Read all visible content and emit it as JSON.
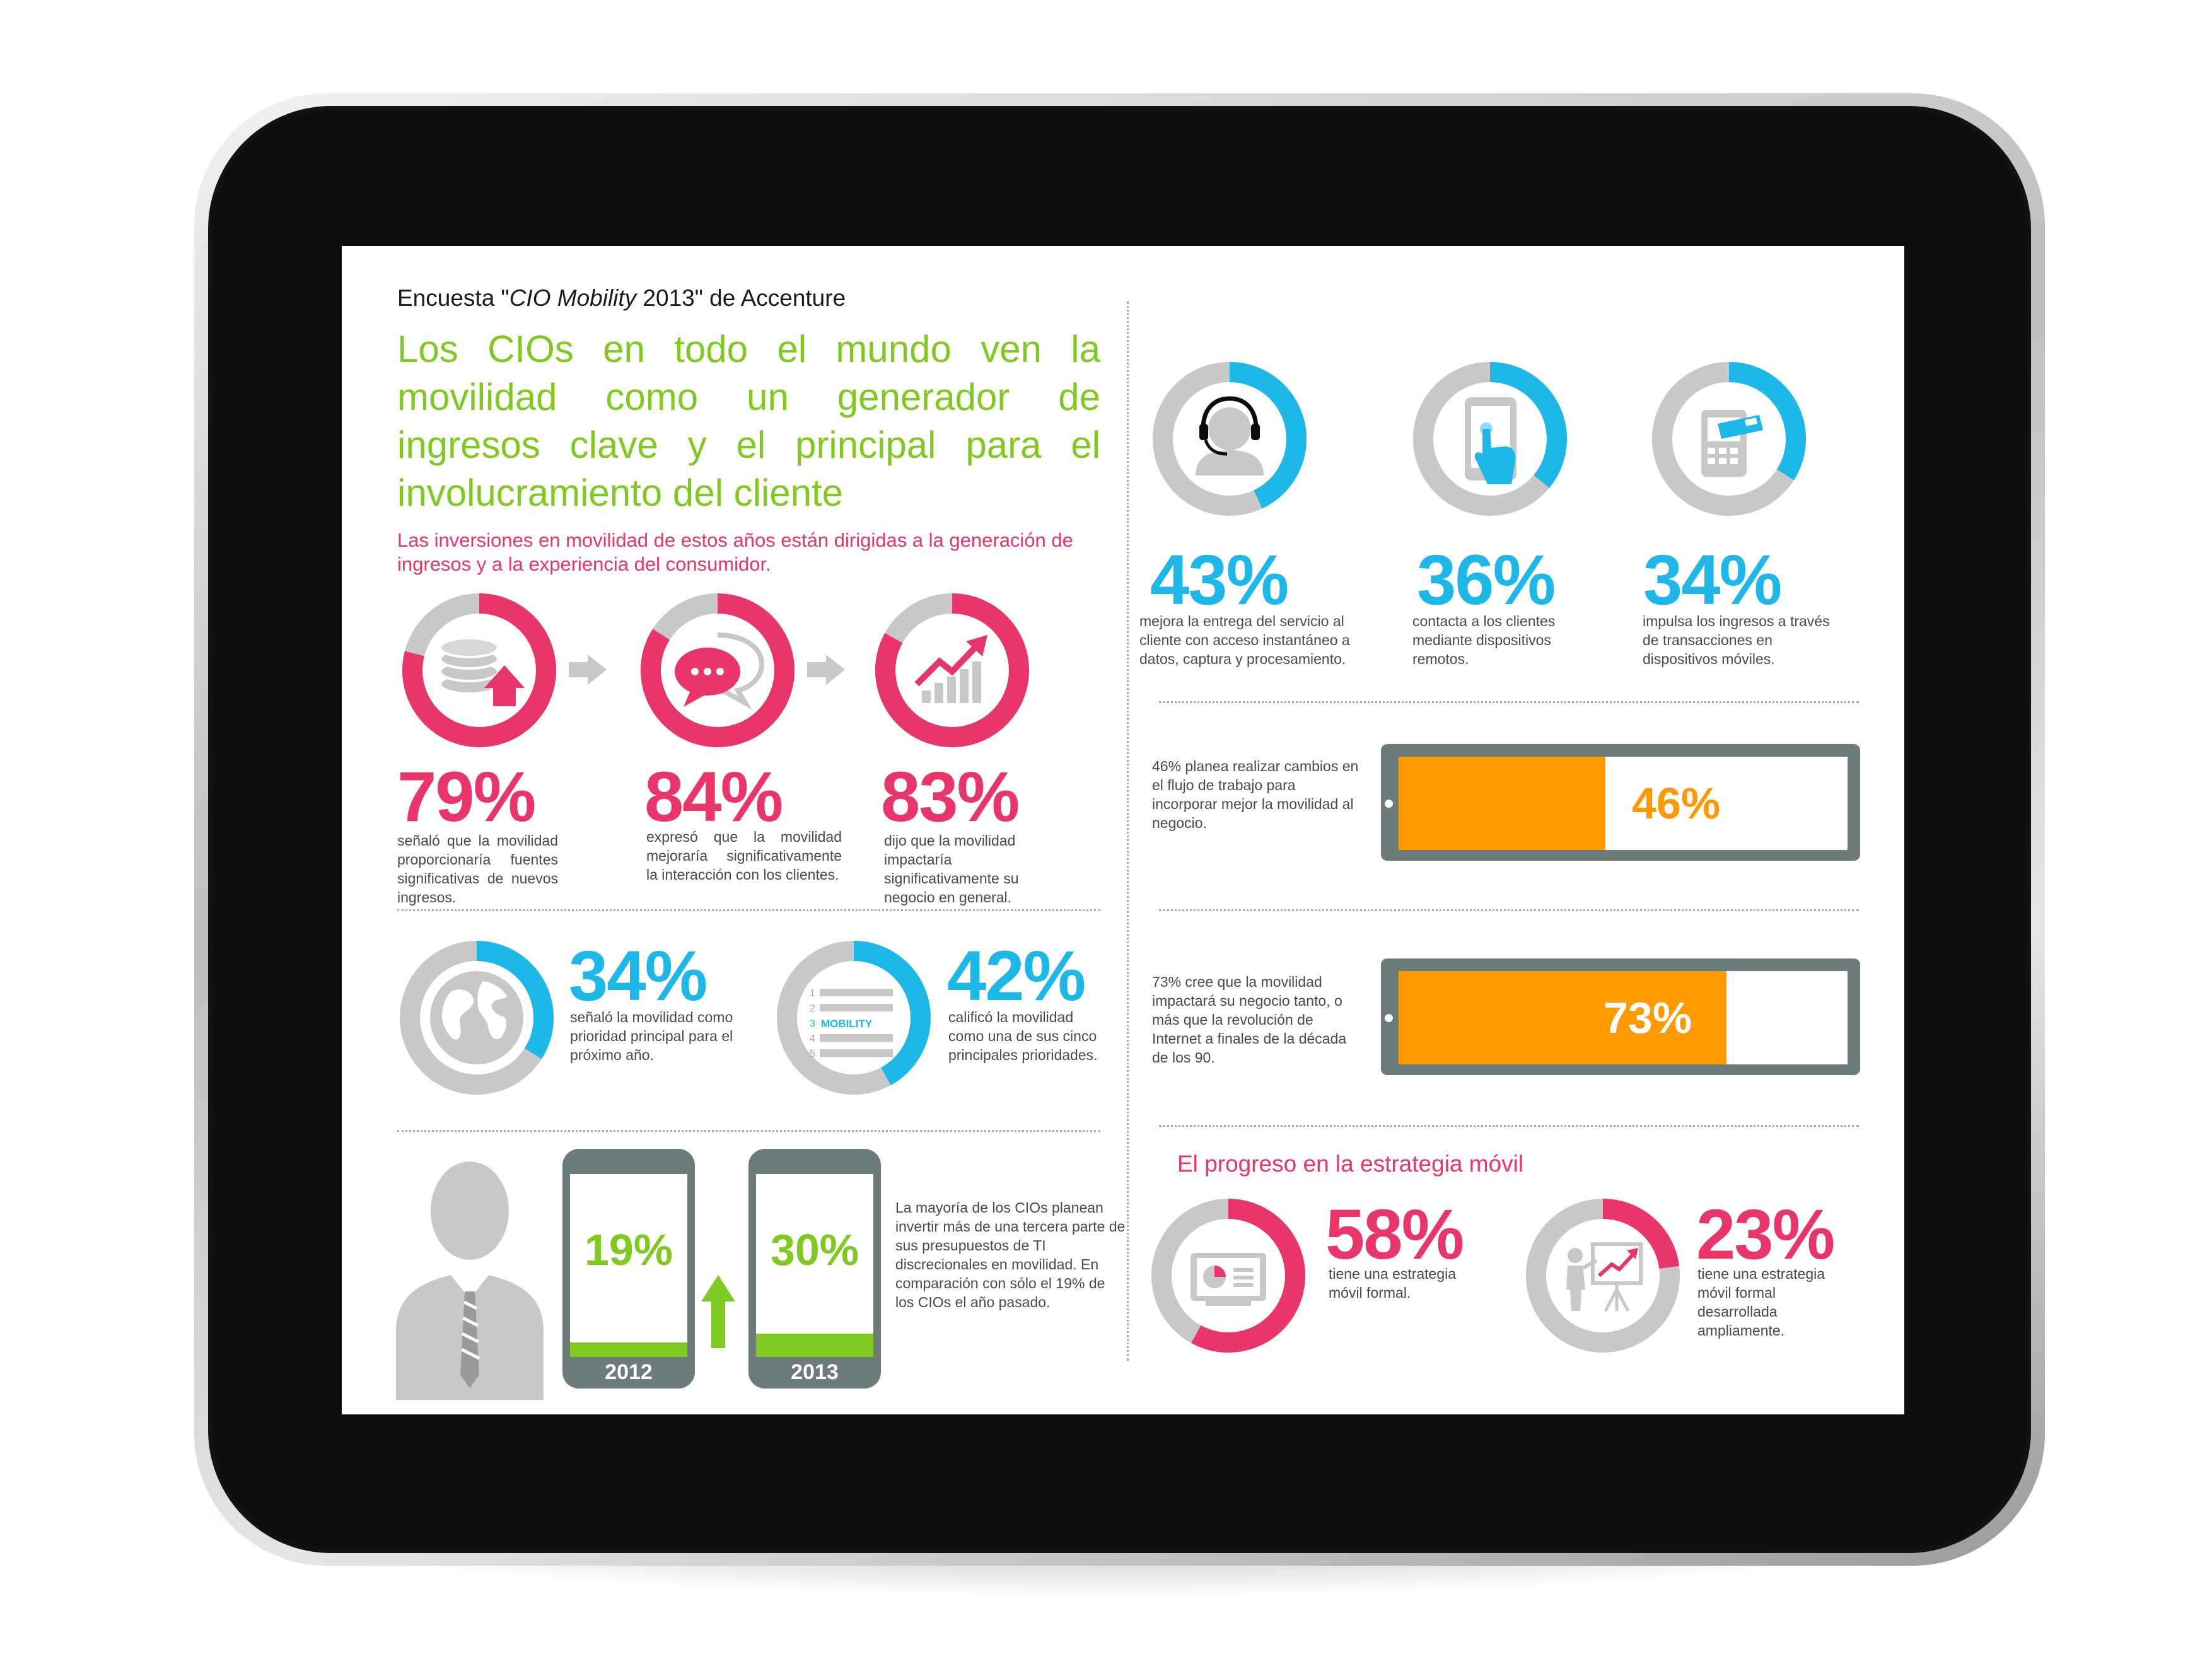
{
  "colors": {
    "pink": "#e8366a",
    "blue": "#1eb8e8",
    "green": "#80c921",
    "orange": "#ff9a00",
    "ring_gray": "#c8c8c8",
    "slate": "#6e7b7b"
  },
  "kicker": {
    "prefix": "Encuesta \"",
    "italic": "CIO Mobility",
    "suffix": " 2013\" de Accenture"
  },
  "headline": "Los CIOs en todo el mundo ven la movilidad como un generador de ingresos clave y el principal para el involucramiento del cliente",
  "subhead": "Las inversiones en movilidad de estos años están dirigidas a la generación de ingresos y a la experiencia del consumidor.",
  "revenue_stats": [
    {
      "icon": "coins-up-icon",
      "value": 79,
      "pct": "79%",
      "text": "señaló que la movilidad proporcionaría fuentes significativas de nuevos ingresos."
    },
    {
      "icon": "chat-bubbles-icon",
      "value": 84,
      "pct": "84%",
      "text": "expresó que la movilidad mejoraría significativamente la interacción con los clientes."
    },
    {
      "icon": "growth-chart-icon",
      "value": 83,
      "pct": "83%",
      "text": "dijo que la movilidad impactaría significativamente su negocio en general."
    }
  ],
  "priority_stats": [
    {
      "icon": "globe-icon",
      "value": 34,
      "pct": "34%",
      "text": "señaló la movilidad como prioridad principal para el próximo año."
    },
    {
      "icon": "priority-list-icon",
      "value": 42,
      "pct": "42%",
      "text": "calificó la movilidad como una de sus cinco principales prioridades.",
      "list_label": "MOBILITY",
      "list_numbers": [
        "1",
        "2",
        "3",
        "4",
        "5"
      ]
    }
  ],
  "budget": {
    "phones": [
      {
        "year": "2012",
        "value": 19,
        "pct": "19%"
      },
      {
        "year": "2013",
        "value": 30,
        "pct": "30%"
      }
    ],
    "text": "La mayoría de los CIOs planean invertir más de una tercera parte de sus presupuestos de TI discrecionales en movilidad. En comparación con sólo el 19% de los CIOs el año pasado."
  },
  "customer_stats": [
    {
      "icon": "headset-agent-icon",
      "value": 43,
      "pct": "43%",
      "text": "mejora la entrega del servicio al cliente con acceso instantáneo a datos, captura y procesamiento."
    },
    {
      "icon": "touch-phone-icon",
      "value": 36,
      "pct": "36%",
      "text": "contacta a los clientes mediante dispositivos remotos."
    },
    {
      "icon": "mobile-payment-icon",
      "value": 34,
      "pct": "34%",
      "text": "impulsa los ingresos a través de transacciones en dispositivos móviles."
    }
  ],
  "batteries": [
    {
      "value": 46,
      "pct": "46%",
      "text": "46% planea realizar cambios en el flujo de trabajo para incorporar mejor la movilidad al negocio."
    },
    {
      "value": 73,
      "pct": "73%",
      "text": "73% cree que la movilidad impactará su negocio tanto, o más que la revolución de Internet a finales de la década de los 90."
    }
  ],
  "strategy": {
    "title": "El progreso en la estrategia móvil",
    "items": [
      {
        "icon": "presentation-screen-icon",
        "value": 58,
        "pct": "58%",
        "text": "tiene una estrategia móvil formal."
      },
      {
        "icon": "presenter-chart-icon",
        "value": 23,
        "pct": "23%",
        "text": "tiene una estrategia móvil formal desarrollada ampliamente."
      }
    ]
  }
}
